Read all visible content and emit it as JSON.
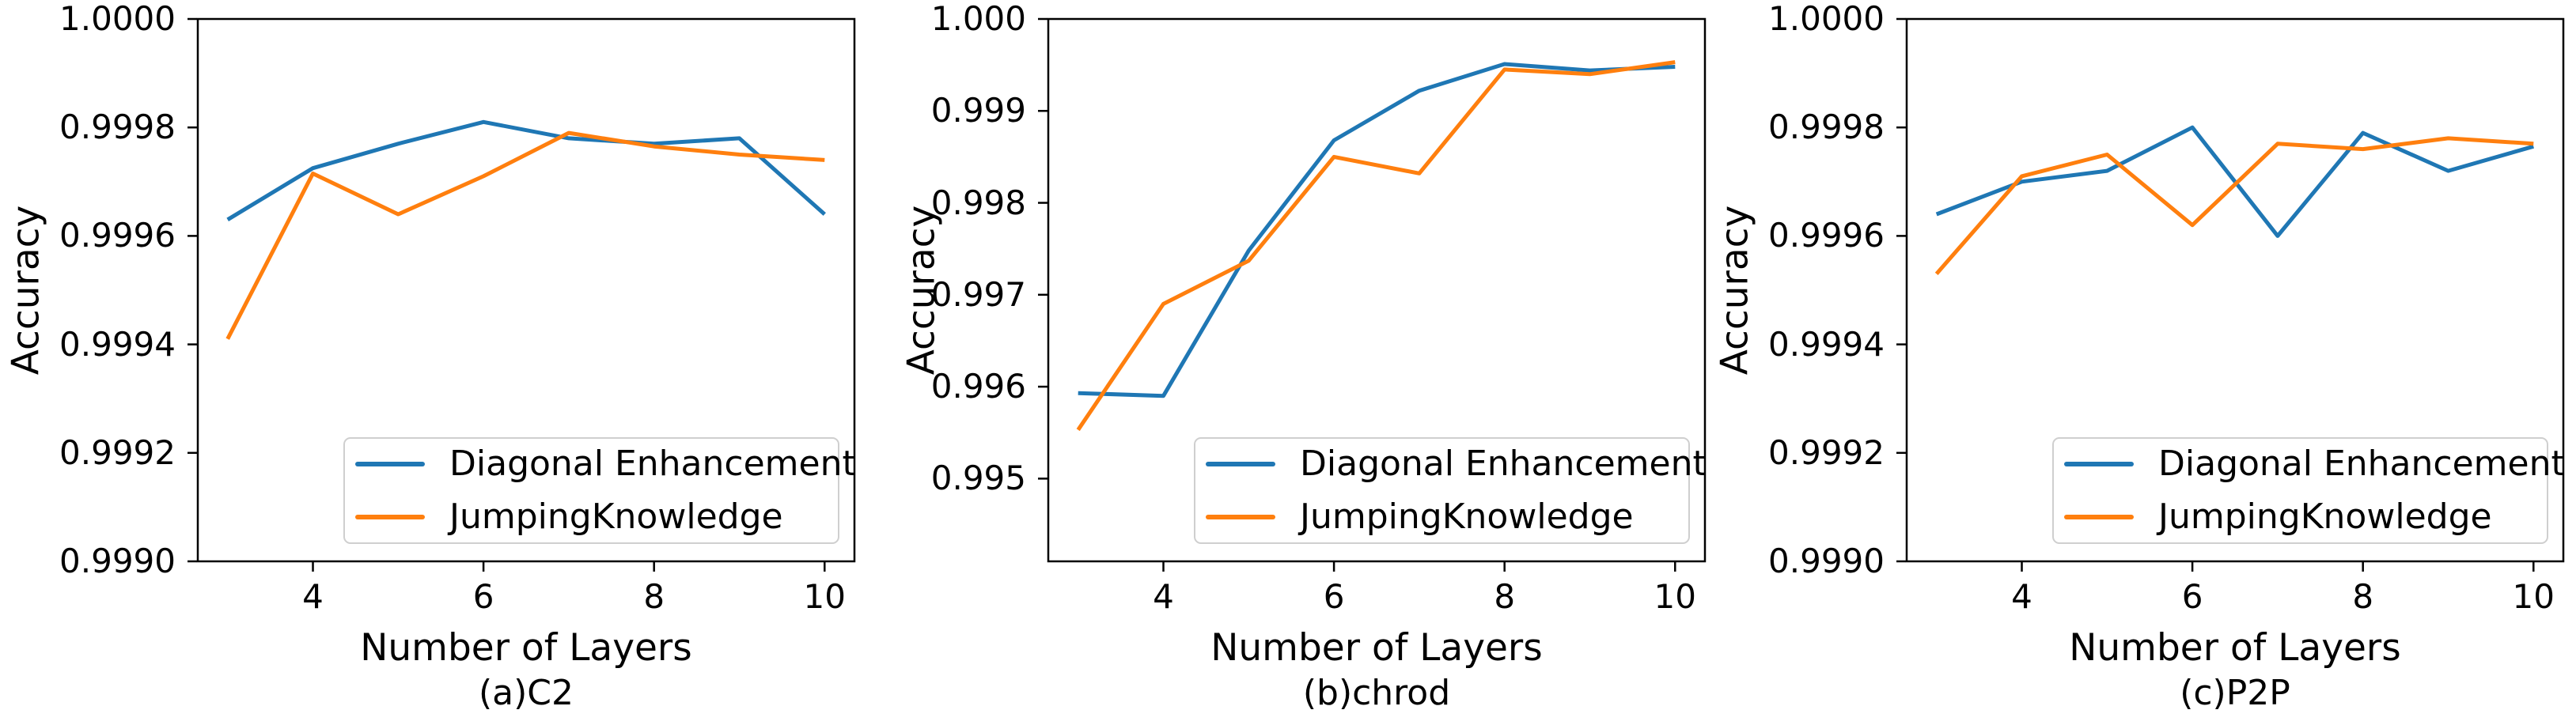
{
  "figure": {
    "background_color": "#ffffff",
    "text_color": "#000000",
    "accent_colors": {
      "series1": "#1f77b4",
      "series2": "#ff7f0e"
    },
    "legend": {
      "position": "lower right",
      "entries": [
        {
          "label": "Diagonal Enhancement",
          "color": "#1f77b4"
        },
        {
          "label": "JumpingKnowledge",
          "color": "#ff7f0e"
        }
      ]
    }
  },
  "chart_data": [
    {
      "type": "line",
      "caption": "(a)C2",
      "xlabel": "Number of Layers",
      "ylabel": "Accuracy",
      "grid": false,
      "legend_position": "lower right",
      "x": [
        3,
        4,
        5,
        6,
        7,
        8,
        9,
        10
      ],
      "series": [
        {
          "name": "Diagonal Enhancement",
          "color": "#1f77b4",
          "values": [
            0.99963,
            0.999725,
            0.99977,
            0.99981,
            0.99978,
            0.99977,
            0.99978,
            0.99964
          ]
        },
        {
          "name": "JumpingKnowledge",
          "color": "#ff7f0e",
          "values": [
            0.99941,
            0.999715,
            0.99964,
            0.99971,
            0.99979,
            0.999765,
            0.99975,
            0.99974
          ]
        }
      ],
      "xlim": [
        2.65,
        10.35
      ],
      "ylim": [
        0.999,
        1.0
      ],
      "xticks": [
        {
          "value": 4,
          "label": "4"
        },
        {
          "value": 6,
          "label": "6"
        },
        {
          "value": 8,
          "label": "8"
        },
        {
          "value": 10,
          "label": "10"
        }
      ],
      "yticks": [
        {
          "value": 0.999,
          "label": "0.9990"
        },
        {
          "value": 0.9992,
          "label": "0.9992"
        },
        {
          "value": 0.9994,
          "label": "0.9994"
        },
        {
          "value": 0.9996,
          "label": "0.9996"
        },
        {
          "value": 0.9998,
          "label": "0.9998"
        },
        {
          "value": 1.0,
          "label": "1.0000"
        }
      ]
    },
    {
      "type": "line",
      "caption": "(b)chrod",
      "xlabel": "Number of Layers",
      "ylabel": "Accuracy",
      "grid": false,
      "legend_position": "lower right",
      "x": [
        3,
        4,
        5,
        6,
        7,
        8,
        9,
        10
      ],
      "series": [
        {
          "name": "Diagonal Enhancement",
          "color": "#1f77b4",
          "values": [
            0.99593,
            0.9959,
            0.99748,
            0.99868,
            0.99922,
            0.99951,
            0.99944,
            0.99948
          ]
        },
        {
          "name": "JumpingKnowledge",
          "color": "#ff7f0e",
          "values": [
            0.99553,
            0.9969,
            0.99737,
            0.9985,
            0.99832,
            0.99945,
            0.9994,
            0.99953
          ]
        }
      ],
      "xlim": [
        2.65,
        10.35
      ],
      "ylim": [
        0.9941,
        1.0
      ],
      "xticks": [
        {
          "value": 4,
          "label": "4"
        },
        {
          "value": 6,
          "label": "6"
        },
        {
          "value": 8,
          "label": "8"
        },
        {
          "value": 10,
          "label": "10"
        }
      ],
      "yticks": [
        {
          "value": 0.995,
          "label": "0.995"
        },
        {
          "value": 0.996,
          "label": "0.996"
        },
        {
          "value": 0.997,
          "label": "0.997"
        },
        {
          "value": 0.998,
          "label": "0.998"
        },
        {
          "value": 0.999,
          "label": "0.999"
        },
        {
          "value": 1.0,
          "label": "1.000"
        }
      ]
    },
    {
      "type": "line",
      "caption": "(c)P2P",
      "xlabel": "Number of Layers",
      "ylabel": "Accuracy",
      "grid": false,
      "legend_position": "lower right",
      "x": [
        3,
        4,
        5,
        6,
        7,
        8,
        9,
        10
      ],
      "series": [
        {
          "name": "Diagonal Enhancement",
          "color": "#1f77b4",
          "values": [
            0.99964,
            0.9997,
            0.99972,
            0.9998,
            0.9996,
            0.99979,
            0.99972,
            0.999765
          ]
        },
        {
          "name": "JumpingKnowledge",
          "color": "#ff7f0e",
          "values": [
            0.99953,
            0.99971,
            0.99975,
            0.99962,
            0.99977,
            0.99976,
            0.99978,
            0.99977
          ]
        }
      ],
      "xlim": [
        2.65,
        10.35
      ],
      "ylim": [
        0.999,
        1.0
      ],
      "xticks": [
        {
          "value": 4,
          "label": "4"
        },
        {
          "value": 6,
          "label": "6"
        },
        {
          "value": 8,
          "label": "8"
        },
        {
          "value": 10,
          "label": "10"
        }
      ],
      "yticks": [
        {
          "value": 0.999,
          "label": "0.9990"
        },
        {
          "value": 0.9992,
          "label": "0.9992"
        },
        {
          "value": 0.9994,
          "label": "0.9994"
        },
        {
          "value": 0.9996,
          "label": "0.9996"
        },
        {
          "value": 0.9998,
          "label": "0.9998"
        },
        {
          "value": 1.0,
          "label": "1.0000"
        }
      ]
    }
  ]
}
